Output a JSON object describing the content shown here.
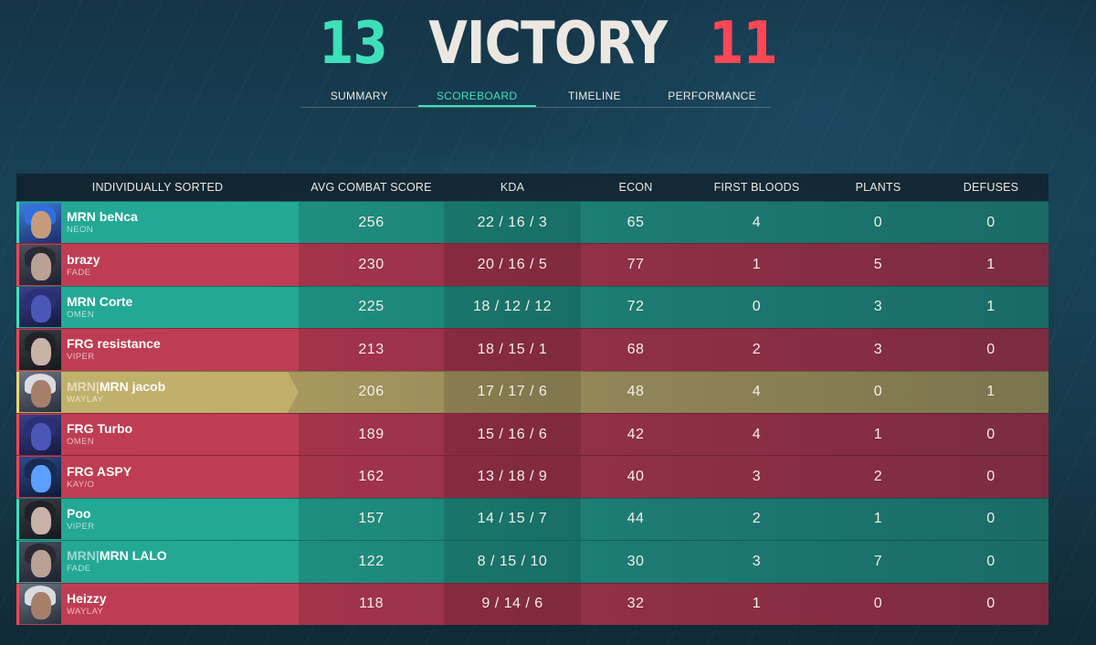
{
  "header": {
    "ally_score": "13",
    "result": "VICTORY",
    "enemy_score": "11",
    "colors": {
      "ally": "#3ee0b9",
      "enemy": "#ff4654"
    }
  },
  "tabs": [
    {
      "label": "SUMMARY",
      "active": false
    },
    {
      "label": "SCOREBOARD",
      "active": true
    },
    {
      "label": "TIMELINE",
      "active": false
    },
    {
      "label": "PERFORMANCE",
      "active": false
    }
  ],
  "table": {
    "columns": {
      "player": "INDIVIDUALLY SORTED",
      "acs": "AVG COMBAT SCORE",
      "kda": "KDA",
      "econ": "ECON",
      "first_bloods": "FIRST BLOODS",
      "plants": "PLANTS",
      "defuses": "DEFUSES"
    },
    "rows": [
      {
        "team": "ally",
        "tag": "",
        "name": "MRN beNca",
        "agent": "NEON",
        "acs": "256",
        "kda": "22 / 16 / 3",
        "econ": "65",
        "first_bloods": "4",
        "plants": "0",
        "defuses": "0",
        "portrait": "neon-portrait-icon"
      },
      {
        "team": "enemy",
        "tag": "",
        "name": "brazy",
        "agent": "FADE",
        "acs": "230",
        "kda": "20 / 16 / 5",
        "econ": "77",
        "first_bloods": "1",
        "plants": "5",
        "defuses": "1",
        "portrait": "fade-portrait-icon"
      },
      {
        "team": "ally",
        "tag": "",
        "name": "MRN Corte",
        "agent": "OMEN",
        "acs": "225",
        "kda": "18 / 12 / 12",
        "econ": "72",
        "first_bloods": "0",
        "plants": "3",
        "defuses": "1",
        "portrait": "omen-portrait-icon"
      },
      {
        "team": "enemy",
        "tag": "",
        "name": "FRG resistance",
        "agent": "VIPER",
        "acs": "213",
        "kda": "18 / 15 / 1",
        "econ": "68",
        "first_bloods": "2",
        "plants": "3",
        "defuses": "0",
        "portrait": "viper-portrait-icon"
      },
      {
        "team": "self",
        "tag": "MRN|",
        "name": "MRN jacob",
        "agent": "WAYLAY",
        "acs": "206",
        "kda": "17 / 17 / 6",
        "econ": "48",
        "first_bloods": "4",
        "plants": "0",
        "defuses": "1",
        "portrait": "waylay-portrait-icon"
      },
      {
        "team": "enemy",
        "tag": "",
        "name": "FRG Turbo",
        "agent": "OMEN",
        "acs": "189",
        "kda": "15 / 16 / 6",
        "econ": "42",
        "first_bloods": "4",
        "plants": "1",
        "defuses": "0",
        "portrait": "omen-portrait-icon"
      },
      {
        "team": "enemy",
        "tag": "",
        "name": "FRG ASPY",
        "agent": "KAY/O",
        "acs": "162",
        "kda": "13 / 18 / 9",
        "econ": "40",
        "first_bloods": "3",
        "plants": "2",
        "defuses": "0",
        "portrait": "kayo-portrait-icon"
      },
      {
        "team": "ally",
        "tag": "",
        "name": "Poo",
        "agent": "VIPER",
        "acs": "157",
        "kda": "14 / 15 / 7",
        "econ": "44",
        "first_bloods": "2",
        "plants": "1",
        "defuses": "0",
        "portrait": "viper-portrait-icon"
      },
      {
        "team": "ally",
        "tag": "MRN|",
        "name": "MRN LALO",
        "agent": "FADE",
        "acs": "122",
        "kda": "8 / 15 / 10",
        "econ": "30",
        "first_bloods": "3",
        "plants": "7",
        "defuses": "0",
        "portrait": "fade-portrait-icon"
      },
      {
        "team": "enemy",
        "tag": "",
        "name": "Heizzy",
        "agent": "WAYLAY",
        "acs": "118",
        "kda": "9 / 14 / 6",
        "econ": "32",
        "first_bloods": "1",
        "plants": "0",
        "defuses": "0",
        "portrait": "waylay-portrait-icon"
      }
    ]
  }
}
